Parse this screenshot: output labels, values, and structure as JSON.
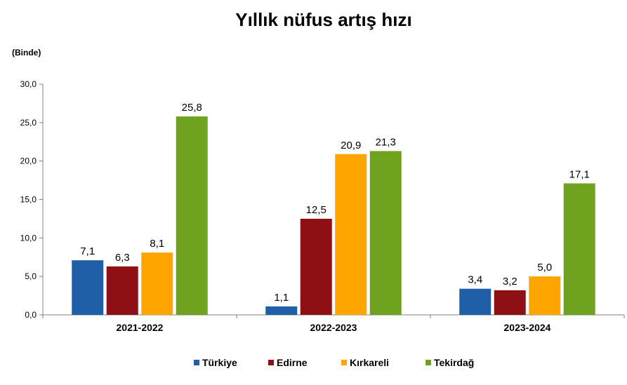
{
  "chart_data": {
    "type": "bar",
    "title": "Yıllık nüfus artış hızı",
    "unit_label": "(Binde)",
    "xlabel": "",
    "ylabel": "",
    "categories": [
      "2021-2022",
      "2022-2023",
      "2023-2024"
    ],
    "ylim": [
      0,
      30
    ],
    "yticks": [
      "0,0",
      "5,0",
      "10,0",
      "15,0",
      "20,0",
      "25,0",
      "30,0"
    ],
    "grid": false,
    "legend_position": "bottom",
    "series": [
      {
        "name": "Türkiye",
        "color": "#1f5fa8",
        "values": [
          7.1,
          1.1,
          3.4
        ],
        "labels": [
          "7,1",
          "1,1",
          "3,4"
        ]
      },
      {
        "name": "Edirne",
        "color": "#8e1014",
        "values": [
          6.3,
          12.5,
          3.2
        ],
        "labels": [
          "6,3",
          "12,5",
          "3,2"
        ]
      },
      {
        "name": "Kırkareli",
        "color": "#ffa500",
        "values": [
          8.1,
          20.9,
          5.0
        ],
        "labels": [
          "8,1",
          "20,9",
          "5,0"
        ]
      },
      {
        "name": "Tekirdağ",
        "color": "#6fa21f",
        "values": [
          25.8,
          21.3,
          17.1
        ],
        "labels": [
          "25,8",
          "21,3",
          "17,1"
        ]
      }
    ]
  }
}
